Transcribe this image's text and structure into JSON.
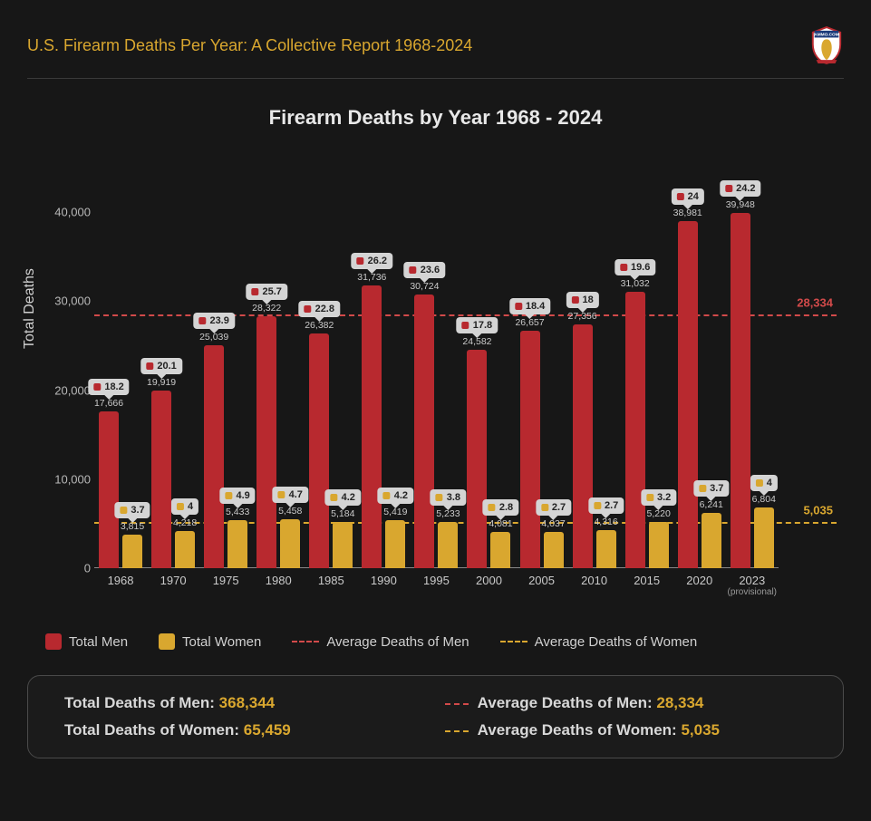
{
  "header": {
    "title": "U.S. Firearm Deaths Per Year: A Collective Report 1968-2024",
    "logo_label": "AMMO.COM"
  },
  "chart": {
    "type": "bar",
    "title": "Firearm Deaths by Year 1968 - 2024",
    "y_label": "Total Deaths",
    "y_max": 44000,
    "y_ticks": [
      0,
      10000,
      20000,
      30000,
      40000
    ],
    "y_tick_labels": [
      "0",
      "10,000",
      "20,000",
      "30,000",
      "40,000"
    ],
    "colors": {
      "men": "#b8292f",
      "women": "#d9a72f",
      "avg_men_line": "#d24a4a",
      "avg_women_line": "#d9a72f",
      "tooltip_bg": "#d4d4d4",
      "background": "#171717",
      "text": "#d0d0d0"
    },
    "avg_men": {
      "value": 28334,
      "label": "28,334"
    },
    "avg_women": {
      "value": 5035,
      "label": "5,035"
    },
    "series": [
      {
        "year": "1968",
        "men": 17666,
        "men_label": "17,666",
        "men_rate": "18.2",
        "women": 3815,
        "women_label": "3,815",
        "women_rate": "3.7"
      },
      {
        "year": "1970",
        "men": 19919,
        "men_label": "19,919",
        "men_rate": "20.1",
        "women": 4218,
        "women_label": "4,218",
        "women_rate": "4"
      },
      {
        "year": "1975",
        "men": 25039,
        "men_label": "25,039",
        "men_rate": "23.9",
        "women": 5433,
        "women_label": "5,433",
        "women_rate": "4.9"
      },
      {
        "year": "1980",
        "men": 28322,
        "men_label": "28,322",
        "men_rate": "25.7",
        "women": 5458,
        "women_label": "5,458",
        "women_rate": "4.7"
      },
      {
        "year": "1985",
        "men": 26382,
        "men_label": "26,382",
        "men_rate": "22.8",
        "women": 5184,
        "women_label": "5,184",
        "women_rate": "4.2"
      },
      {
        "year": "1990",
        "men": 31736,
        "men_label": "31,736",
        "men_rate": "26.2",
        "women": 5419,
        "women_label": "5,419",
        "women_rate": "4.2"
      },
      {
        "year": "1995",
        "men": 30724,
        "men_label": "30,724",
        "men_rate": "23.6",
        "women": 5233,
        "women_label": "5,233",
        "women_rate": "3.8"
      },
      {
        "year": "2000",
        "men": 24582,
        "men_label": "24,582",
        "men_rate": "17.8",
        "women": 4081,
        "women_label": "4,081",
        "women_rate": "2.8"
      },
      {
        "year": "2005",
        "men": 26657,
        "men_label": "26,657",
        "men_rate": "18.4",
        "women": 4037,
        "women_label": "4,037",
        "women_rate": "2.7"
      },
      {
        "year": "2010",
        "men": 27356,
        "men_label": "27,356",
        "men_rate": "18",
        "women": 4316,
        "women_label": "4,316",
        "women_rate": "2.7"
      },
      {
        "year": "2015",
        "men": 31032,
        "men_label": "31,032",
        "men_rate": "19.6",
        "women": 5220,
        "women_label": "5,220",
        "women_rate": "3.2"
      },
      {
        "year": "2020",
        "men": 38981,
        "men_label": "38,981",
        "men_rate": "24",
        "women": 6241,
        "women_label": "6,241",
        "women_rate": "3.7"
      },
      {
        "year": "2023",
        "year_sub": "(provisional)",
        "men": 39948,
        "men_label": "39,948",
        "men_rate": "24.2",
        "women": 6804,
        "women_label": "6,804",
        "women_rate": "4"
      }
    ]
  },
  "legend": {
    "men": "Total Men",
    "women": "Total Women",
    "avg_men": "Average Deaths of Men",
    "avg_women": "Average Deaths of Women"
  },
  "summary": {
    "total_men_label": "Total Deaths of Men:",
    "total_men_value": "368,344",
    "total_women_label": "Total Deaths of Women:",
    "total_women_value": "65,459",
    "avg_men_label": "Average Deaths of Men:",
    "avg_men_value": "28,334",
    "avg_women_label": "Average Deaths of Women:",
    "avg_women_value": "5,035"
  }
}
